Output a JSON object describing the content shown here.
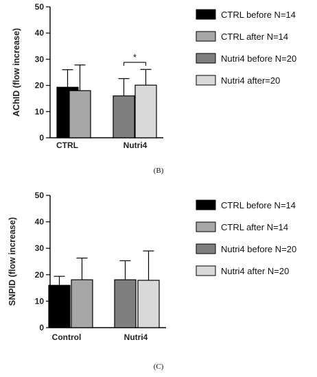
{
  "chart_data": [
    {
      "type": "bar",
      "panel_label": "(B)",
      "ylabel": "AChID (flow increase)",
      "yticks": [
        0,
        10,
        20,
        30,
        40,
        50
      ],
      "ylim": [
        0,
        50
      ],
      "groups": [
        "CTRL",
        "Nutri4"
      ],
      "series": [
        {
          "name": "CTRL before N=14",
          "color": "#000000"
        },
        {
          "name": "CTRL after N=14",
          "color": "#a6a6a6"
        },
        {
          "name": "Nutri4  before N=20",
          "color": "#7f7f7f"
        },
        {
          "name": "Nutri4  after=20",
          "color": "#d9d9d9"
        }
      ],
      "bars": [
        {
          "group": "CTRL",
          "series": "CTRL before N=14",
          "value": 19.3,
          "error": 6.7
        },
        {
          "group": "CTRL",
          "series": "CTRL after N=14",
          "value": 18.0,
          "error": 9.8
        },
        {
          "group": "Nutri4",
          "series": "Nutri4  before N=20",
          "value": 16.0,
          "error": 6.6
        },
        {
          "group": "Nutri4",
          "series": "Nutri4  after=20",
          "value": 20.1,
          "error": 6.0
        }
      ],
      "annotations": [
        {
          "text": "*",
          "between": [
            "Nutri4  before N=20",
            "Nutri4  after=20"
          ],
          "y": 28.8
        }
      ],
      "legend_position": "right"
    },
    {
      "type": "bar",
      "panel_label": "(C)",
      "ylabel": "SNPID (flow increase)",
      "yticks": [
        0,
        10,
        20,
        30,
        40,
        50
      ],
      "ylim": [
        0,
        50
      ],
      "groups": [
        "Control",
        "Nutri4"
      ],
      "series": [
        {
          "name": "CTRL before N=14",
          "color": "#000000"
        },
        {
          "name": "CTRL after N=14",
          "color": "#a6a6a6"
        },
        {
          "name": "Nutri4 before N=20",
          "color": "#7f7f7f"
        },
        {
          "name": "Nutri4 after N=20",
          "color": "#d9d9d9"
        }
      ],
      "bars": [
        {
          "group": "Control",
          "series": "CTRL before N=14",
          "value": 16.0,
          "error": 3.4
        },
        {
          "group": "Control",
          "series": "CTRL after N=14",
          "value": 18.1,
          "error": 8.2
        },
        {
          "group": "Nutri4",
          "series": "Nutri4 before N=20",
          "value": 18.1,
          "error": 7.2
        },
        {
          "group": "Nutri4",
          "series": "Nutri4 after N=20",
          "value": 17.9,
          "error": 11.1
        }
      ],
      "annotations": [],
      "legend_position": "right"
    }
  ]
}
